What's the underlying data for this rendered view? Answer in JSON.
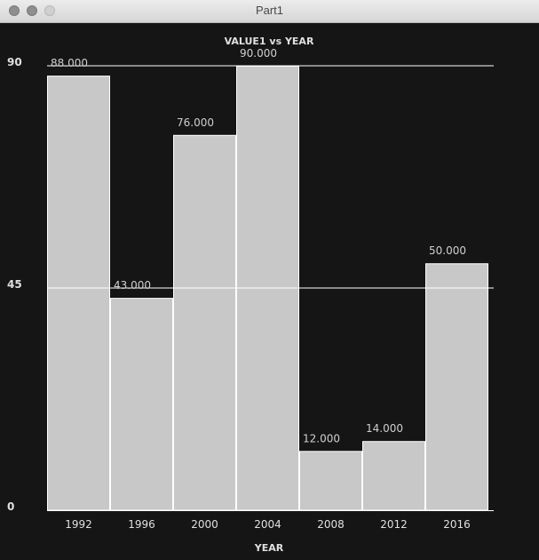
{
  "window": {
    "title": "Part1"
  },
  "chart_data": {
    "type": "bar",
    "title": "VALUE1 vs YEAR",
    "xlabel": "YEAR",
    "ylabel": "",
    "categories": [
      "1992",
      "1996",
      "2000",
      "2004",
      "2008",
      "2012",
      "2016"
    ],
    "values": [
      88,
      43,
      76,
      90,
      12,
      14,
      50
    ],
    "value_labels": [
      "88.000",
      "43.000",
      "76.000",
      "90.000",
      "12.000",
      "14.000",
      "50.000"
    ],
    "ylim": [
      0,
      90
    ],
    "yticks": [
      0,
      45,
      90
    ],
    "ytick_labels": [
      "0",
      "45",
      "90"
    ],
    "grid": true,
    "colors": {
      "background": "#151515",
      "bar": "#c8c8c8",
      "bar_edge": "#ffffff",
      "text": "#e0e0e0",
      "value_label": "#cfcfcf",
      "grid": "#ffffff"
    }
  }
}
